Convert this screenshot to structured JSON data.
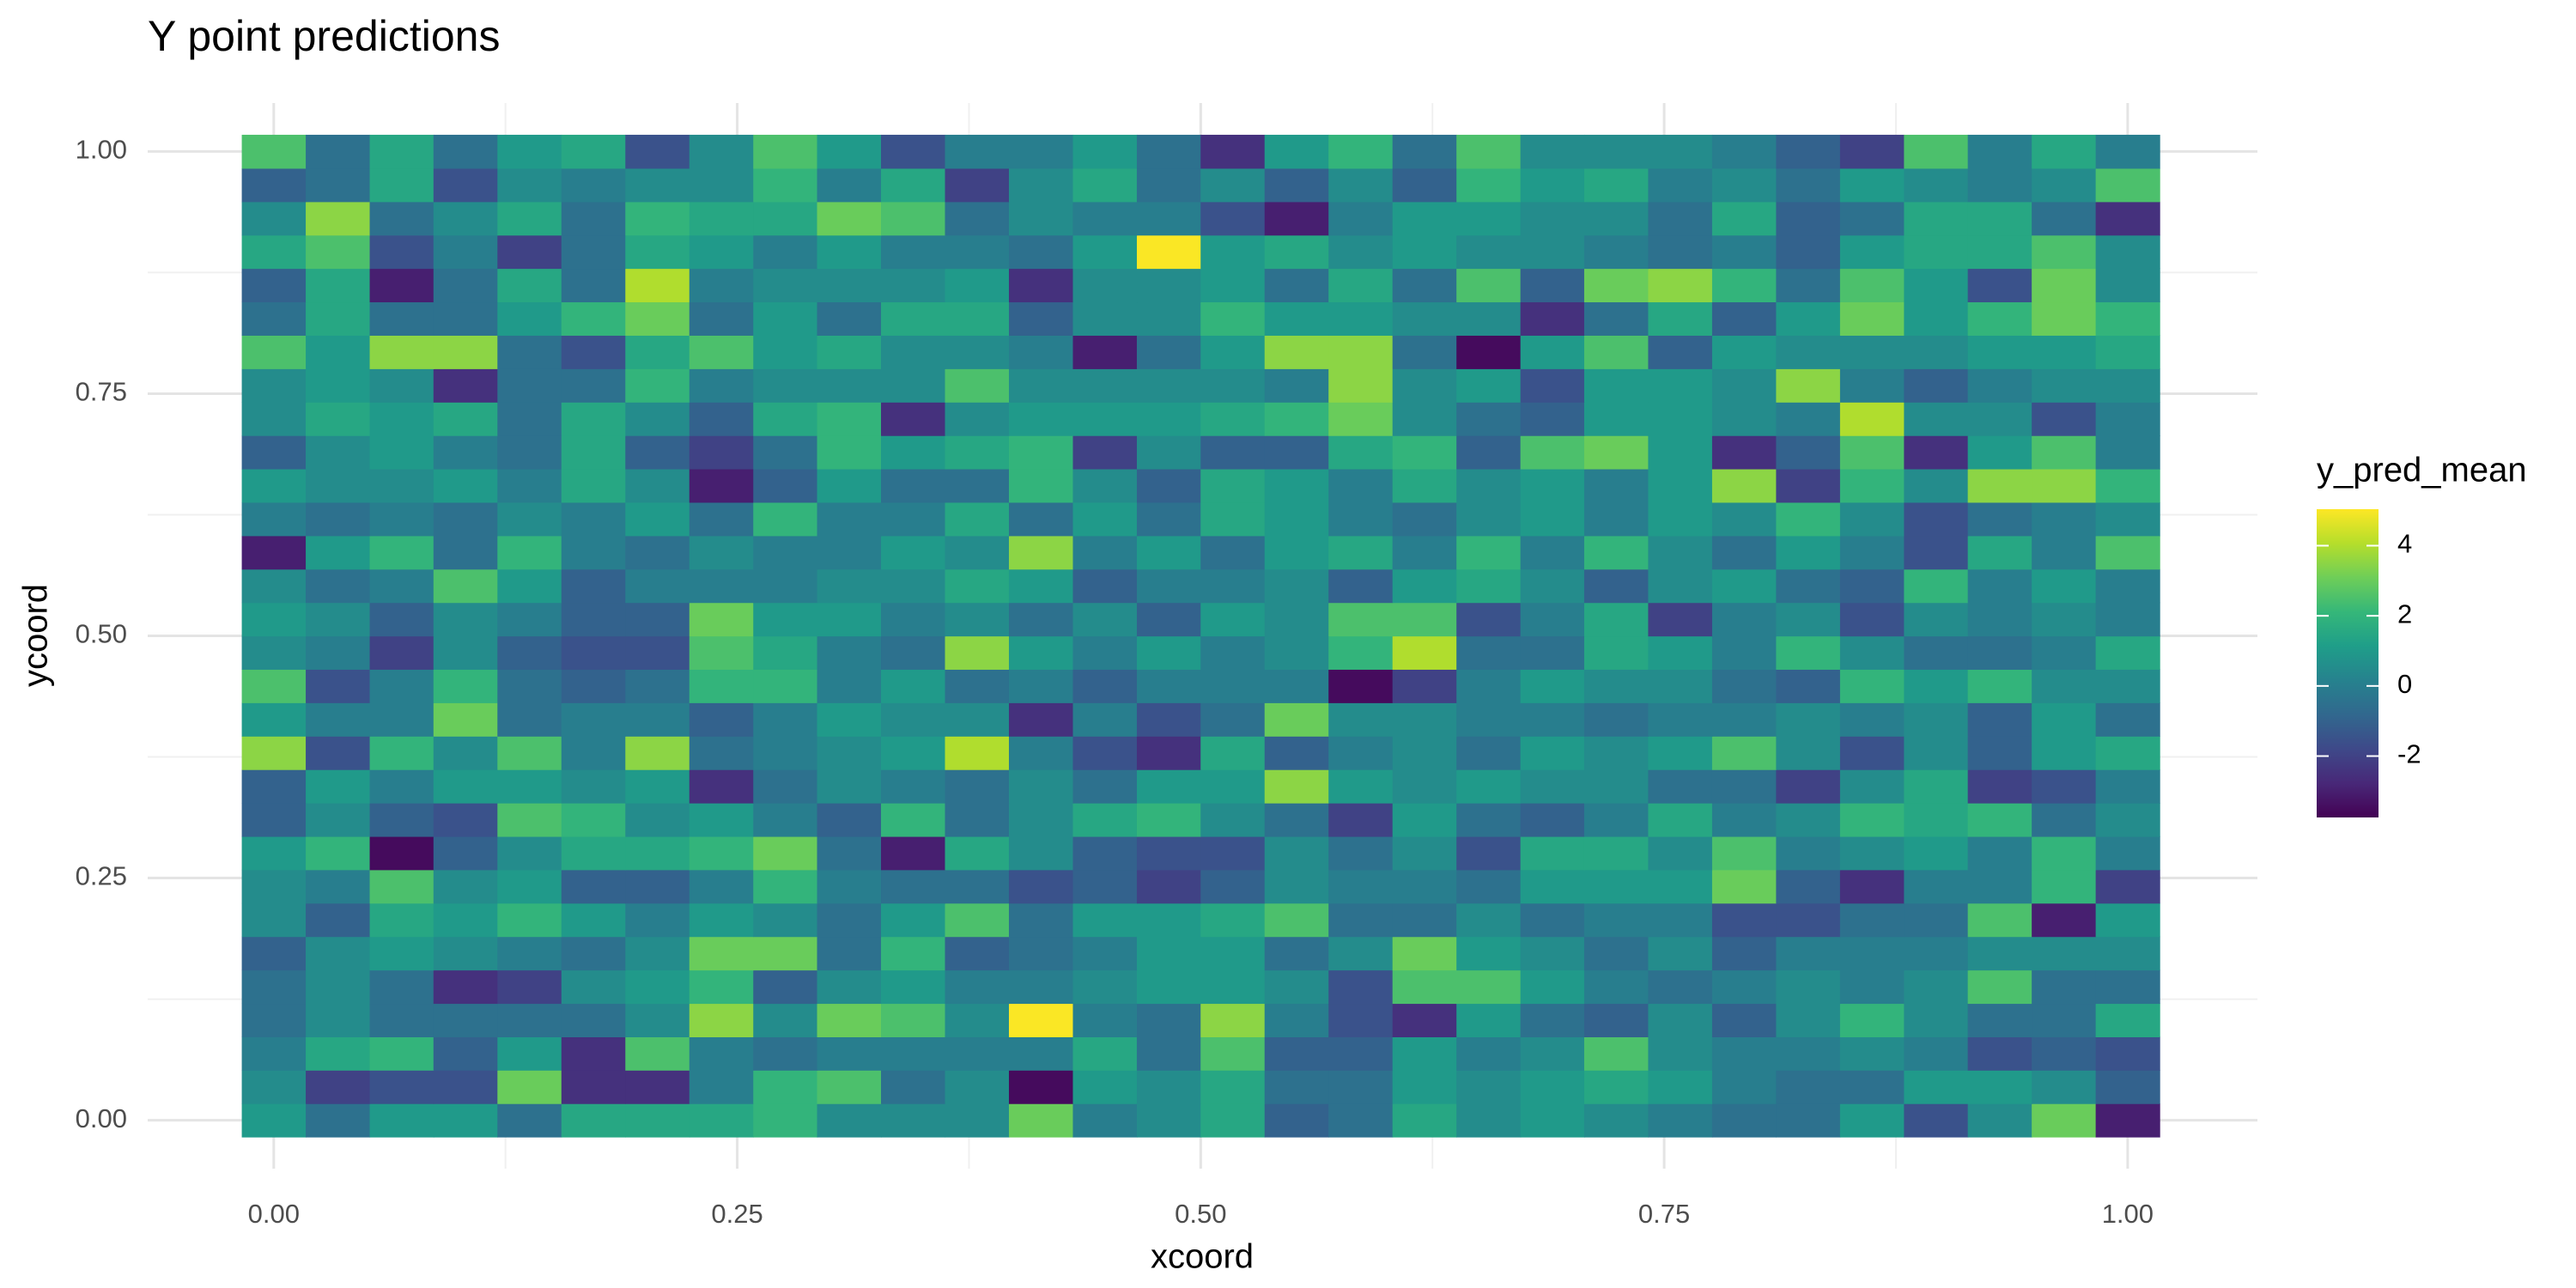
{
  "chart_data": {
    "type": "heatmap",
    "title": "Y point predictions",
    "x_label": "xcoord",
    "y_label": "ycoord",
    "legend_title": "y_pred_mean",
    "grid": true,
    "colors": [
      "#440154",
      "#482878",
      "#3e4989",
      "#31688e",
      "#26828e",
      "#1f9e89",
      "#35b779",
      "#6ece58",
      "#b5de2b",
      "#fde725"
    ],
    "clim": [
      -3.75,
      5.04
    ],
    "cticks": [
      -2,
      0,
      2,
      4
    ],
    "xlim": [
      -0.068,
      1.07
    ],
    "ylim": [
      -0.05,
      1.05
    ],
    "xticks": [
      {
        "value": 0,
        "label": "0.00"
      },
      {
        "value": 0.25,
        "label": "0.25"
      },
      {
        "value": 0.5,
        "label": "0.50"
      },
      {
        "value": 0.75,
        "label": "0.75"
      },
      {
        "value": 1,
        "label": "1.00"
      }
    ],
    "yticks": [
      {
        "value": 0,
        "label": "0.00"
      },
      {
        "value": 0.25,
        "label": "0.25"
      },
      {
        "value": 0.5,
        "label": "0.50"
      },
      {
        "value": 0.75,
        "label": "0.75"
      },
      {
        "value": 1,
        "label": "1.00"
      }
    ],
    "x": [
      0,
      0.0345,
      0.069,
      0.1034,
      0.1379,
      0.1724,
      0.2069,
      0.2414,
      0.2759,
      0.3103,
      0.3448,
      0.3793,
      0.4138,
      0.4483,
      0.4828,
      0.5172,
      0.5517,
      0.5862,
      0.6207,
      0.6552,
      0.6897,
      0.7241,
      0.7586,
      0.7931,
      0.8276,
      0.8621,
      0.8966,
      0.931,
      0.9655,
      1
    ],
    "y": [
      0,
      0.0345,
      0.069,
      0.1034,
      0.1379,
      0.1724,
      0.2069,
      0.2414,
      0.2759,
      0.3103,
      0.3448,
      0.3793,
      0.4138,
      0.4483,
      0.4828,
      0.5172,
      0.5517,
      0.5862,
      0.6207,
      0.6552,
      0.6897,
      0.7241,
      0.7586,
      0.7931,
      0.8276,
      0.8621,
      0.8966,
      0.931,
      0.9655,
      1
    ],
    "z": [
      [
        1,
        -0.5,
        1,
        1,
        -0.5,
        1.5,
        1.5,
        1.5,
        2,
        0.5,
        0.5,
        0.5,
        3,
        0,
        0.5,
        1.5,
        -1,
        -0.5,
        1.5,
        0.5,
        1,
        0.5,
        0,
        -0.5,
        -0.5,
        1,
        -1.5,
        0.5,
        3,
        -3
      ],
      [
        0.5,
        -2,
        -1.5,
        -1.5,
        3,
        -2.5,
        -2.5,
        0,
        2,
        2.5,
        -0.5,
        0.5,
        -3.5,
        1,
        0.5,
        1.5,
        -0.5,
        -0.5,
        1,
        0.5,
        1,
        1.5,
        1,
        0,
        -0.5,
        -0.5,
        1,
        1,
        0.5,
        -1
      ],
      [
        0,
        1.5,
        2,
        -1,
        1,
        -2.5,
        2.5,
        0,
        -0.5,
        0,
        0,
        0,
        0,
        1.5,
        -0.5,
        2.5,
        -1,
        -1,
        1,
        0,
        0.5,
        2.5,
        0.5,
        0,
        0,
        0.5,
        0,
        -1.5,
        -1,
        -1.5
      ],
      [
        -0.5,
        0.5,
        -0.5,
        -0.5,
        -0.5,
        -0.5,
        0.5,
        3.5,
        0.5,
        3,
        2.5,
        0.5,
        5,
        0,
        -0.5,
        3.5,
        0,
        -1.5,
        -2.5,
        1,
        -0.5,
        -1,
        0.5,
        -1,
        0.5,
        2,
        0.5,
        -0.5,
        -0.5,
        1.5
      ],
      [
        -0.5,
        0.5,
        -0.5,
        -2.5,
        -2,
        0.5,
        1,
        2,
        -1,
        0.5,
        1,
        0,
        0,
        0.5,
        1,
        1,
        0.5,
        -1.5,
        2.5,
        2.5,
        1,
        0,
        -0.5,
        0,
        0.5,
        0,
        0.5,
        2.5,
        -0.5,
        -0.5
      ],
      [
        -1,
        0.5,
        1,
        0.5,
        0,
        -0.5,
        0.5,
        3,
        3,
        -0.5,
        2,
        -1,
        -0.5,
        0,
        1,
        1,
        -0.5,
        0.5,
        3,
        1,
        0.5,
        -0.5,
        0.5,
        -1,
        0,
        0,
        0,
        0.5,
        0.5,
        0.5
      ],
      [
        0.5,
        -1,
        1.5,
        1,
        2,
        1,
        0,
        1,
        0.5,
        -0.5,
        1,
        2.5,
        -0.5,
        1,
        1,
        1.5,
        2.5,
        -0.5,
        -0.5,
        0.5,
        -0.5,
        0,
        0,
        -1.5,
        -1.5,
        -0.5,
        -0.5,
        2.5,
        -3,
        1
      ],
      [
        0.5,
        0,
        2.5,
        0.5,
        1,
        -1,
        -1,
        0,
        2,
        0,
        -0.5,
        -0.5,
        -1.5,
        -1,
        -2,
        -1,
        0.5,
        0,
        0,
        -0.5,
        1,
        1,
        1,
        3,
        -1,
        -2.5,
        0,
        0,
        2,
        -2
      ],
      [
        1,
        2,
        -3.5,
        -1,
        0.5,
        1.5,
        1.5,
        2,
        3,
        -0.5,
        -3,
        1.5,
        0.5,
        -1,
        -1.5,
        -1.5,
        0.5,
        -0.5,
        0.5,
        -1.5,
        1.5,
        1.5,
        0.5,
        2.5,
        0,
        0.5,
        1,
        0,
        2,
        0
      ],
      [
        -1,
        0.5,
        -1,
        -1.5,
        2.5,
        2,
        0.5,
        1,
        0,
        -1,
        2,
        -0.5,
        0.5,
        1.5,
        2,
        0.5,
        -0.5,
        -2,
        1,
        -0.5,
        -1,
        0,
        1.5,
        0,
        0.5,
        2,
        1.5,
        2,
        -0.5,
        0.5
      ],
      [
        -1,
        1,
        0,
        1,
        1,
        0.5,
        1,
        -2.5,
        -0.5,
        0.5,
        0,
        -0.5,
        0.5,
        -0.5,
        1,
        1,
        3.5,
        1,
        0.5,
        1,
        0.5,
        0.5,
        -0.5,
        -0.5,
        -2,
        0.5,
        1.5,
        -2,
        -1.5,
        0
      ],
      [
        3.5,
        -1.5,
        2,
        0.5,
        2.5,
        0,
        3.5,
        -0.5,
        0,
        0.5,
        1,
        4,
        0,
        -1.5,
        -2.5,
        1.5,
        -1,
        0,
        0.5,
        -0.5,
        1,
        0.5,
        1,
        2.5,
        0.5,
        -1.5,
        0.5,
        -1,
        1,
        1.5
      ],
      [
        1,
        0,
        0,
        3,
        -0.5,
        0,
        0,
        -1,
        0,
        1,
        0.5,
        0.5,
        -2.5,
        0,
        -1.5,
        -0.5,
        3,
        0.5,
        0.5,
        0,
        0,
        -0.5,
        0,
        0,
        0.5,
        0,
        0.5,
        -1,
        1,
        -0.5
      ],
      [
        2.5,
        -1.5,
        0,
        2,
        -0.5,
        -1,
        -0.5,
        2,
        2,
        0,
        1,
        -0.5,
        0,
        -1,
        0,
        0,
        0,
        -3.5,
        -2,
        0,
        1,
        0.5,
        0.5,
        -0.5,
        -1,
        2,
        1,
        2,
        0.5,
        0.5
      ],
      [
        0.5,
        0,
        -2,
        0.5,
        -1,
        -1.5,
        -1.5,
        2.5,
        1.5,
        0,
        -0.5,
        3.5,
        1,
        0,
        1,
        0,
        0.5,
        2,
        4,
        -0.5,
        -0.5,
        1.5,
        1,
        0,
        2,
        0.5,
        -0.5,
        -0.5,
        0,
        1.5
      ],
      [
        1,
        0.5,
        -1,
        0.5,
        0,
        -1,
        -1,
        3,
        1,
        1,
        0,
        0.5,
        -0.5,
        0.5,
        -1,
        1,
        0.5,
        2.5,
        2.5,
        -1.5,
        0,
        1.5,
        -2,
        0,
        0.5,
        -1.5,
        0.5,
        0,
        0.5,
        0
      ],
      [
        0.5,
        -0.5,
        0,
        2.5,
        1,
        -1,
        0,
        0,
        0,
        0.5,
        0.5,
        1.5,
        1,
        -1,
        0,
        0,
        0.5,
        -1,
        1,
        1.5,
        0.5,
        -1,
        0.5,
        1,
        -0.5,
        -1,
        2,
        0,
        1,
        0
      ],
      [
        -3,
        1,
        2,
        -0.5,
        2,
        0,
        -0.5,
        0.5,
        0,
        0,
        1,
        0.5,
        3.5,
        0,
        1,
        -0.5,
        1,
        1.5,
        0,
        2,
        0,
        2,
        0.5,
        -0.5,
        1,
        0,
        -1.5,
        1.5,
        0,
        2.5
      ],
      [
        0,
        -0.5,
        0,
        -0.5,
        0.5,
        0,
        1,
        -0.5,
        2,
        0,
        0,
        1.5,
        -0.5,
        1,
        -0.5,
        1.5,
        1,
        0,
        -0.5,
        0.5,
        1,
        0,
        1,
        0.5,
        2,
        0.5,
        -1.5,
        -0.5,
        0,
        0.5
      ],
      [
        1,
        0.5,
        0.5,
        1,
        0,
        1.5,
        0.5,
        -3,
        -1,
        1,
        -0.5,
        -0.5,
        2,
        0.5,
        -1,
        1.5,
        1,
        0,
        1.5,
        0.5,
        1,
        0,
        1,
        3.5,
        -2,
        2,
        0.5,
        3.5,
        3.5,
        2
      ],
      [
        -1,
        0.5,
        1,
        0,
        -0.5,
        1.5,
        -1,
        -2,
        -0.5,
        2,
        1,
        1.5,
        2,
        -2,
        0.5,
        -1,
        -1,
        1.5,
        2,
        -1,
        2.5,
        3,
        1,
        -2.5,
        -1,
        2.5,
        -2.5,
        1,
        2.5,
        0
      ],
      [
        0.5,
        1.5,
        1,
        1.5,
        -0.5,
        1.5,
        0.5,
        -1,
        1.5,
        2,
        -2.5,
        0.5,
        1,
        1,
        1,
        1.5,
        2,
        3,
        0.5,
        -0.5,
        -1,
        1,
        1,
        0.5,
        0,
        4,
        0.5,
        0.5,
        -1.5,
        0
      ],
      [
        0.5,
        1,
        0.5,
        -2.5,
        -0.5,
        -0.5,
        2,
        0,
        0.5,
        0.5,
        0.5,
        2.5,
        0.5,
        0.5,
        0.5,
        0.5,
        0,
        3.5,
        0.5,
        1,
        -1.5,
        1,
        1,
        0.5,
        3.5,
        0,
        -1,
        0,
        0.5,
        0.5
      ],
      [
        2.5,
        1,
        3.5,
        3.5,
        -0.5,
        -1.5,
        1.5,
        2.5,
        1,
        1.5,
        0.5,
        0.5,
        0,
        -3,
        -0.5,
        1,
        3.5,
        3.5,
        -0.5,
        -3.5,
        1,
        2.5,
        -1,
        1,
        0.5,
        0.5,
        0.5,
        1,
        1,
        1.5
      ],
      [
        -0.5,
        1.5,
        -0.5,
        -0.5,
        1,
        2,
        3,
        -0.5,
        1,
        -0.5,
        1.5,
        1.5,
        -1,
        0.5,
        0.5,
        2,
        1,
        1,
        0.5,
        0.5,
        -2.5,
        -0.5,
        1.5,
        -1,
        1,
        3,
        1,
        2,
        3,
        2
      ],
      [
        -1,
        1.5,
        -3,
        -0.5,
        1.5,
        -0.5,
        4,
        0,
        0.5,
        0.5,
        0.5,
        1,
        -2.5,
        0.5,
        0.5,
        1,
        -0.5,
        1.5,
        -0.5,
        2.5,
        -1,
        3,
        3.5,
        2,
        -0.5,
        2.5,
        1,
        -1.5,
        3,
        0.5
      ],
      [
        1.5,
        2.5,
        -1.5,
        0,
        -2,
        -0.5,
        1.5,
        1,
        0,
        1,
        0,
        0,
        -0.5,
        1,
        5,
        1,
        1.5,
        0.5,
        1,
        0.5,
        0.5,
        0,
        -0.5,
        0,
        -1,
        1,
        1.5,
        1.5,
        2.5,
        0.5
      ],
      [
        0.5,
        3.5,
        -0.5,
        0.5,
        1.5,
        -0.5,
        2,
        1.5,
        1.5,
        3,
        2.5,
        -0.5,
        0.5,
        0,
        0,
        -1.5,
        -3,
        0,
        1,
        1,
        0.5,
        0.5,
        -0.5,
        1.5,
        -1,
        -0.5,
        1.5,
        1.5,
        -0.5,
        -2.5
      ],
      [
        -1,
        -0.5,
        1.5,
        -1.5,
        0.5,
        0,
        0.5,
        0.5,
        2,
        0,
        1.5,
        -2,
        0.5,
        1.5,
        -0.5,
        0.5,
        -1,
        0.5,
        -1,
        2,
        1,
        1.5,
        0,
        0.5,
        -0.5,
        1,
        0.5,
        0,
        0.5,
        2.5
      ],
      [
        2.5,
        -0.5,
        1.5,
        -0.5,
        1,
        1.5,
        -1.5,
        0.5,
        2.5,
        1,
        -1.5,
        0,
        0,
        1,
        -0.5,
        -2.5,
        1,
        2,
        -0.5,
        2.5,
        0.5,
        0.5,
        0.5,
        0,
        -1,
        -2,
        2.5,
        0,
        1.5,
        0
      ]
    ]
  }
}
